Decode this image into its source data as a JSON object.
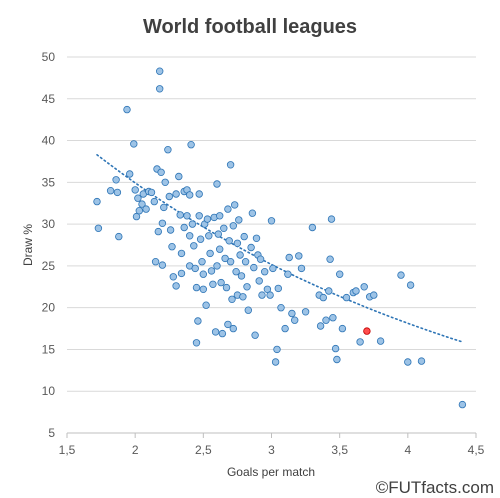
{
  "chart_data": {
    "type": "scatter",
    "title": "World football leagues",
    "xlabel": "Goals per match",
    "ylabel": "Draw %",
    "xlim": [
      1.5,
      4.5
    ],
    "ylim": [
      5,
      50
    ],
    "x_ticks": [
      "1,5",
      "2",
      "2,5",
      "3",
      "3,5",
      "4",
      "4,5"
    ],
    "y_ticks": [
      "5",
      "10",
      "15",
      "20",
      "25",
      "30",
      "35",
      "40",
      "45",
      "50"
    ],
    "grid": "horizontal",
    "legend": "none",
    "trendline": {
      "style": "dotted",
      "x_start": 1.72,
      "x_end": 4.4,
      "y_start": 38.3,
      "y_end": 15.9
    },
    "colors": {
      "points": "#9dc3e6",
      "point_edge": "#2e75b6",
      "highlight": "#ff4d4d",
      "highlight_edge": "#c00000",
      "trendline": "#2e75b6",
      "grid": "#d9d9d9"
    },
    "highlighted_point": {
      "x": 3.7,
      "y": 17.2
    },
    "series": [
      {
        "points": [
          [
            1.72,
            32.7
          ],
          [
            1.73,
            29.5
          ],
          [
            1.82,
            34.0
          ],
          [
            1.86,
            35.3
          ],
          [
            1.87,
            33.8
          ],
          [
            1.88,
            28.5
          ],
          [
            1.94,
            43.7
          ],
          [
            1.96,
            36.0
          ],
          [
            1.99,
            39.6
          ],
          [
            2.0,
            34.1
          ],
          [
            2.01,
            30.9
          ],
          [
            2.02,
            33.1
          ],
          [
            2.03,
            31.6
          ],
          [
            2.05,
            32.4
          ],
          [
            2.06,
            33.6
          ],
          [
            2.08,
            31.8
          ],
          [
            2.1,
            33.9
          ],
          [
            2.12,
            33.8
          ],
          [
            2.14,
            32.7
          ],
          [
            2.15,
            25.5
          ],
          [
            2.16,
            36.6
          ],
          [
            2.17,
            29.1
          ],
          [
            2.18,
            48.3
          ],
          [
            2.18,
            46.2
          ],
          [
            2.19,
            36.2
          ],
          [
            2.2,
            30.1
          ],
          [
            2.2,
            25.1
          ],
          [
            2.21,
            32.0
          ],
          [
            2.22,
            35.0
          ],
          [
            2.24,
            38.9
          ],
          [
            2.25,
            33.3
          ],
          [
            2.26,
            29.3
          ],
          [
            2.27,
            27.3
          ],
          [
            2.28,
            23.7
          ],
          [
            2.3,
            33.6
          ],
          [
            2.3,
            22.6
          ],
          [
            2.32,
            35.7
          ],
          [
            2.33,
            31.1
          ],
          [
            2.34,
            26.5
          ],
          [
            2.34,
            24.1
          ],
          [
            2.36,
            33.9
          ],
          [
            2.36,
            29.6
          ],
          [
            2.38,
            34.1
          ],
          [
            2.38,
            31.0
          ],
          [
            2.4,
            33.5
          ],
          [
            2.4,
            28.6
          ],
          [
            2.4,
            25.0
          ],
          [
            2.41,
            39.5
          ],
          [
            2.42,
            30.0
          ],
          [
            2.43,
            27.4
          ],
          [
            2.44,
            24.7
          ],
          [
            2.45,
            22.4
          ],
          [
            2.45,
            15.8
          ],
          [
            2.46,
            18.4
          ],
          [
            2.47,
            33.6
          ],
          [
            2.47,
            31.0
          ],
          [
            2.48,
            28.2
          ],
          [
            2.49,
            25.5
          ],
          [
            2.5,
            24.0
          ],
          [
            2.5,
            22.2
          ],
          [
            2.51,
            30.0
          ],
          [
            2.52,
            20.3
          ],
          [
            2.53,
            30.6
          ],
          [
            2.54,
            28.6
          ],
          [
            2.55,
            26.5
          ],
          [
            2.56,
            24.4
          ],
          [
            2.57,
            22.8
          ],
          [
            2.58,
            30.8
          ],
          [
            2.59,
            17.1
          ],
          [
            2.6,
            34.8
          ],
          [
            2.6,
            25.0
          ],
          [
            2.61,
            28.8
          ],
          [
            2.62,
            31.0
          ],
          [
            2.62,
            27.0
          ],
          [
            2.63,
            23.0
          ],
          [
            2.64,
            16.9
          ],
          [
            2.65,
            29.5
          ],
          [
            2.66,
            25.9
          ],
          [
            2.67,
            22.4
          ],
          [
            2.68,
            31.8
          ],
          [
            2.68,
            18.0
          ],
          [
            2.69,
            28.0
          ],
          [
            2.7,
            37.1
          ],
          [
            2.7,
            25.5
          ],
          [
            2.71,
            21.0
          ],
          [
            2.72,
            29.8
          ],
          [
            2.72,
            17.5
          ],
          [
            2.73,
            32.3
          ],
          [
            2.74,
            24.3
          ],
          [
            2.75,
            27.7
          ],
          [
            2.75,
            21.5
          ],
          [
            2.76,
            30.5
          ],
          [
            2.77,
            26.3
          ],
          [
            2.78,
            23.8
          ],
          [
            2.79,
            21.3
          ],
          [
            2.8,
            28.5
          ],
          [
            2.81,
            25.5
          ],
          [
            2.82,
            22.5
          ],
          [
            2.83,
            19.7
          ],
          [
            2.85,
            27.2
          ],
          [
            2.86,
            31.3
          ],
          [
            2.87,
            24.8
          ],
          [
            2.88,
            16.7
          ],
          [
            2.89,
            28.3
          ],
          [
            2.9,
            26.3
          ],
          [
            2.91,
            23.2
          ],
          [
            2.92,
            25.8
          ],
          [
            2.93,
            21.5
          ],
          [
            2.95,
            24.3
          ],
          [
            2.97,
            22.2
          ],
          [
            2.99,
            21.5
          ],
          [
            3.0,
            30.4
          ],
          [
            3.01,
            24.7
          ],
          [
            3.03,
            13.5
          ],
          [
            3.04,
            15.0
          ],
          [
            3.05,
            22.3
          ],
          [
            3.07,
            20.0
          ],
          [
            3.1,
            17.5
          ],
          [
            3.12,
            24.0
          ],
          [
            3.13,
            26.0
          ],
          [
            3.15,
            19.3
          ],
          [
            3.17,
            18.5
          ],
          [
            3.2,
            26.2
          ],
          [
            3.22,
            24.7
          ],
          [
            3.25,
            19.5
          ],
          [
            3.3,
            29.6
          ],
          [
            3.35,
            21.5
          ],
          [
            3.36,
            17.8
          ],
          [
            3.38,
            21.2
          ],
          [
            3.4,
            18.5
          ],
          [
            3.42,
            22.0
          ],
          [
            3.43,
            25.8
          ],
          [
            3.44,
            30.6
          ],
          [
            3.45,
            18.8
          ],
          [
            3.47,
            15.1
          ],
          [
            3.48,
            13.8
          ],
          [
            3.5,
            24.0
          ],
          [
            3.52,
            17.5
          ],
          [
            3.55,
            21.2
          ],
          [
            3.6,
            21.8
          ],
          [
            3.62,
            22.0
          ],
          [
            3.65,
            15.9
          ],
          [
            3.68,
            22.5
          ],
          [
            3.72,
            21.3
          ],
          [
            3.75,
            21.5
          ],
          [
            3.8,
            16.0
          ],
          [
            3.95,
            23.9
          ],
          [
            4.0,
            13.5
          ],
          [
            4.02,
            22.7
          ],
          [
            4.1,
            13.6
          ],
          [
            4.4,
            8.4
          ]
        ]
      }
    ]
  },
  "watermark": "©FUTfacts.com"
}
